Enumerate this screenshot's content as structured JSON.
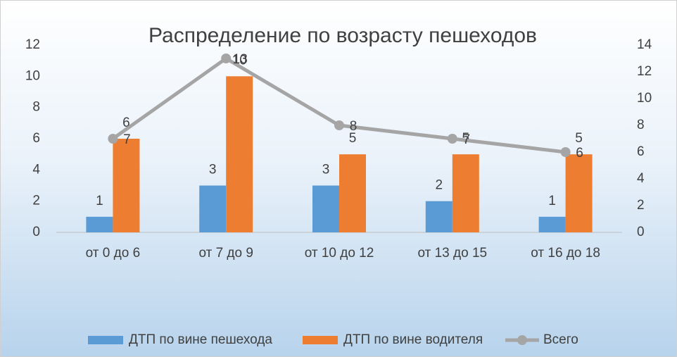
{
  "chart_data": {
    "type": "combo",
    "title": "Распределение по возрасту пешеходов",
    "categories": [
      "от 0 до 6",
      "от 7 до 9",
      "от 10 до 12",
      "от 13 до 15",
      "от 16 до 18"
    ],
    "series": [
      {
        "name": "ДТП по вине пешехода",
        "type": "bar",
        "color": "#5b9bd5",
        "values": [
          1,
          3,
          3,
          2,
          1
        ]
      },
      {
        "name": "ДТП по вине водителя",
        "type": "bar",
        "color": "#ed7d31",
        "values": [
          6,
          10,
          5,
          5,
          5
        ]
      },
      {
        "name": "Всего",
        "type": "line",
        "axis": "y2",
        "color": "#a5a5a5",
        "values": [
          7,
          13,
          8,
          7,
          6
        ]
      }
    ],
    "ylim": [
      0,
      12
    ],
    "yticks": [
      0,
      2,
      4,
      6,
      8,
      10,
      12
    ],
    "y2lim": [
      0,
      14
    ],
    "y2ticks": [
      0,
      2,
      4,
      6,
      8,
      10,
      12,
      14
    ],
    "grid": false,
    "legend": "bottom"
  }
}
